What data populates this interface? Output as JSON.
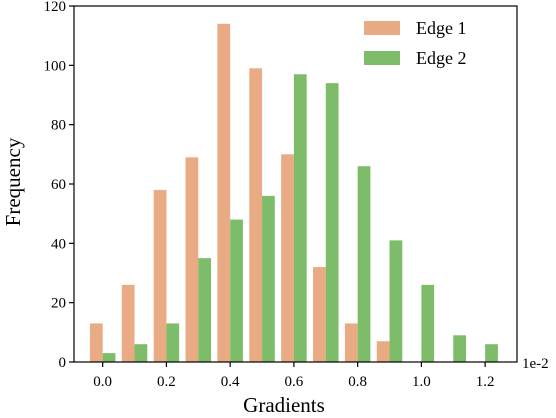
{
  "chart_data": {
    "type": "bar",
    "xlabel": "Gradients",
    "ylabel": "Frequency",
    "x_exponent_label": "1e-2",
    "xlim": [
      -0.09,
      1.3
    ],
    "ylim": [
      0,
      120
    ],
    "xticks": [
      0.0,
      0.2,
      0.4,
      0.6,
      0.8,
      1.0,
      1.2
    ],
    "xtick_labels": [
      "0.0",
      "0.2",
      "0.4",
      "0.6",
      "0.8",
      "1.0",
      "1.2"
    ],
    "yticks": [
      0,
      20,
      40,
      60,
      80,
      100,
      120
    ],
    "ytick_labels": [
      "0",
      "20",
      "40",
      "60",
      "80",
      "100",
      "120"
    ],
    "bins": [
      0.0,
      0.1,
      0.2,
      0.3,
      0.4,
      0.5,
      0.6,
      0.7,
      0.8,
      0.9,
      1.0,
      1.1,
      1.2
    ],
    "series": [
      {
        "name": "Edge 1",
        "color": "#e8ab84",
        "values": [
          13,
          26,
          58,
          69,
          114,
          99,
          70,
          32,
          13,
          7,
          0,
          0,
          0
        ]
      },
      {
        "name": "Edge 2",
        "color": "#7dbd6a",
        "values": [
          3,
          6,
          13,
          35,
          48,
          56,
          97,
          94,
          66,
          41,
          26,
          9,
          6
        ]
      }
    ],
    "legend_position": "top-right",
    "grid": false
  }
}
